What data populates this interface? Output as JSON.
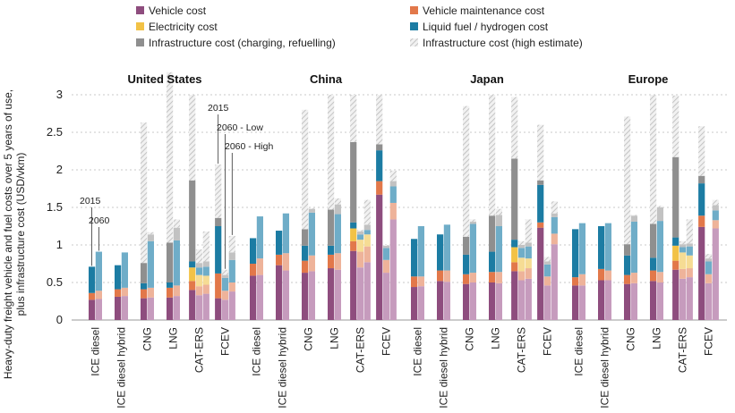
{
  "chart_data": {
    "type": "bar",
    "stacked": true,
    "ylabel": "Heavy-duty freight vehicle and fuel costs over 5 years of use, plus infrastructure cost (USD/vkm)",
    "ylim": [
      0,
      3
    ],
    "yticks": [
      0,
      0.5,
      1,
      1.5,
      2,
      2.5,
      3
    ],
    "grid": "horizontal",
    "legend_position": "top",
    "regions": [
      "United States",
      "China",
      "Japan",
      "Europe"
    ],
    "technologies": [
      "ICE diesel",
      "ICE diesel hybrid",
      "CNG",
      "LNG",
      "CAT-ERS",
      "FCEV"
    ],
    "bar_labels": [
      "2015",
      "2060 - Low",
      "2060 - High"
    ],
    "annotations": [
      {
        "text": "2015",
        "target": "United States / ICE diesel / 2015"
      },
      {
        "text": "2060",
        "target": "United States / ICE diesel / 2060"
      },
      {
        "text": "2015",
        "target": "United States / FCEV / 2015"
      },
      {
        "text": "2060 - Low",
        "target": "United States / FCEV / 2060 - Low"
      },
      {
        "text": "2060 - High",
        "target": "United States / FCEV / 2060 - High"
      }
    ],
    "components": [
      {
        "key": "vehicle",
        "name": "Vehicle cost",
        "color": "#8e4d7e",
        "light": "#c69bbd"
      },
      {
        "key": "maintenance",
        "name": "Vehicle maintenance cost",
        "color": "#e2784a",
        "light": "#eeb39a"
      },
      {
        "key": "electricity",
        "name": "Electricity cost",
        "color": "#f2c246",
        "light": "#f6dc94"
      },
      {
        "key": "fuel",
        "name": "Liquid fuel / hydrogen cost",
        "color": "#1c7ca3",
        "light": "#6fadc8"
      },
      {
        "key": "infra",
        "name": "Infrastructure cost (charging, refuelling)",
        "color": "#8f8f8f",
        "light": "#c2c2c2"
      },
      {
        "key": "infra_high",
        "name": "Infrastructure cost (high estimate)",
        "color": "#dadada",
        "light": "#dadada"
      }
    ],
    "series": [
      {
        "region": "United States",
        "tech": "ICE diesel",
        "bars": [
          [
            0.27,
            0.09,
            0,
            0.35,
            0,
            0
          ],
          [
            0.28,
            0.11,
            0,
            0.52,
            0,
            0
          ]
        ]
      },
      {
        "region": "United States",
        "tech": "ICE diesel hybrid",
        "bars": [
          [
            0.31,
            0.1,
            0,
            0.32,
            0,
            0
          ],
          [
            0.32,
            0.11,
            0,
            0.47,
            0,
            0
          ]
        ]
      },
      {
        "region": "United States",
        "tech": "CNG",
        "bars": [
          [
            0.29,
            0.12,
            0,
            0.08,
            0.27,
            1.87
          ],
          [
            0.3,
            0.13,
            0,
            0.62,
            0.09,
            0.03
          ]
        ]
      },
      {
        "region": "United States",
        "tech": "LNG",
        "bars": [
          [
            0.3,
            0.13,
            0,
            0.07,
            0.53,
            2.27
          ],
          [
            0.32,
            0.14,
            0,
            0.6,
            0.17,
            0.11
          ]
        ]
      },
      {
        "region": "United States",
        "tech": "CAT-ERS",
        "bars": [
          [
            0.4,
            0.12,
            0.18,
            0.08,
            1.08,
            1.14
          ],
          [
            0.33,
            0.12,
            0.15,
            0.1,
            0.06,
            0.18
          ],
          [
            0.35,
            0.12,
            0.12,
            0.12,
            0.07,
            0.4
          ]
        ]
      },
      {
        "region": "United States",
        "tech": "FCEV",
        "bars": [
          [
            0.29,
            0.33,
            0,
            0.63,
            0.11,
            0.71
          ],
          [
            0.27,
            0.12,
            0,
            0.17,
            0.04,
            0.07
          ],
          [
            0.38,
            0.12,
            0,
            0.3,
            0.1,
            0.22
          ]
        ]
      },
      {
        "region": "China",
        "tech": "ICE diesel",
        "bars": [
          [
            0.59,
            0.16,
            0,
            0.34,
            0,
            0
          ],
          [
            0.6,
            0.22,
            0,
            0.56,
            0,
            0
          ]
        ]
      },
      {
        "region": "China",
        "tech": "ICE diesel hybrid",
        "bars": [
          [
            0.73,
            0.14,
            0,
            0.32,
            0,
            0
          ],
          [
            0.66,
            0.23,
            0,
            0.53,
            0,
            0
          ]
        ]
      },
      {
        "region": "China",
        "tech": "CNG",
        "bars": [
          [
            0.63,
            0.16,
            0,
            0.2,
            0.22,
            1.59
          ],
          [
            0.65,
            0.21,
            0,
            0.57,
            0.05,
            0.01
          ]
        ]
      },
      {
        "region": "China",
        "tech": "LNG",
        "bars": [
          [
            0.69,
            0.18,
            0,
            0.12,
            0.48,
            1.53
          ],
          [
            0.67,
            0.22,
            0,
            0.52,
            0.13,
            0.08
          ]
        ]
      },
      {
        "region": "China",
        "tech": "CAT-ERS",
        "bars": [
          [
            0.92,
            0.13,
            0.17,
            0.08,
            1.07,
            0.63
          ],
          [
            0.7,
            0.21,
            0.16,
            0.07,
            0.04,
            0.02
          ],
          [
            0.77,
            0.21,
            0.16,
            0.06,
            0.07,
            0.33
          ]
        ]
      },
      {
        "region": "China",
        "tech": "FCEV",
        "bars": [
          [
            1.67,
            0.18,
            0,
            0.41,
            0.08,
            0.66
          ],
          [
            0.63,
            0.17,
            0,
            0.16,
            0.03,
            0.01
          ],
          [
            1.34,
            0.22,
            0,
            0.22,
            0.07,
            0.14
          ]
        ]
      },
      {
        "region": "Japan",
        "tech": "ICE diesel",
        "bars": [
          [
            0.44,
            0.14,
            0,
            0.5,
            0,
            0
          ],
          [
            0.45,
            0.13,
            0,
            0.67,
            0,
            0
          ]
        ]
      },
      {
        "region": "Japan",
        "tech": "ICE diesel hybrid",
        "bars": [
          [
            0.52,
            0.14,
            0,
            0.48,
            0,
            0
          ],
          [
            0.51,
            0.15,
            0,
            0.61,
            0,
            0
          ]
        ]
      },
      {
        "region": "Japan",
        "tech": "CNG",
        "bars": [
          [
            0.48,
            0.13,
            0,
            0.26,
            0.24,
            1.74
          ],
          [
            0.5,
            0.13,
            0,
            0.65,
            0.03,
            0.03
          ]
        ]
      },
      {
        "region": "Japan",
        "tech": "LNG",
        "bars": [
          [
            0.5,
            0.14,
            0,
            0.27,
            0.48,
            1.61
          ],
          [
            0.49,
            0.15,
            0,
            0.61,
            0.15,
            0.08
          ]
        ]
      },
      {
        "region": "Japan",
        "tech": "CAT-ERS",
        "bars": [
          [
            0.65,
            0.12,
            0.2,
            0.1,
            1.08,
            0.82
          ],
          [
            0.53,
            0.12,
            0.18,
            0.13,
            0.04,
            0.05
          ],
          [
            0.55,
            0.14,
            0.13,
            0.16,
            0.05,
            0.31
          ]
        ]
      },
      {
        "region": "Japan",
        "tech": "FCEV",
        "bars": [
          [
            1.23,
            0.07,
            0,
            0.5,
            0.06,
            0.74
          ],
          [
            0.46,
            0.12,
            0,
            0.16,
            0.04,
            0.06
          ],
          [
            1.01,
            0.14,
            0,
            0.22,
            0.05,
            0.16
          ]
        ]
      },
      {
        "region": "Europe",
        "tech": "ICE diesel",
        "bars": [
          [
            0.46,
            0.11,
            0,
            0.64,
            0,
            0
          ],
          [
            0.46,
            0.15,
            0,
            0.68,
            0,
            0
          ]
        ]
      },
      {
        "region": "Europe",
        "tech": "ICE diesel hybrid",
        "bars": [
          [
            0.53,
            0.15,
            0,
            0.57,
            0,
            0
          ],
          [
            0.53,
            0.13,
            0,
            0.63,
            0,
            0
          ]
        ]
      },
      {
        "region": "Europe",
        "tech": "CNG",
        "bars": [
          [
            0.48,
            0.12,
            0,
            0.26,
            0.15,
            1.7
          ],
          [
            0.49,
            0.14,
            0,
            0.68,
            0.08,
            0.01
          ]
        ]
      },
      {
        "region": "Europe",
        "tech": "LNG",
        "bars": [
          [
            0.52,
            0.14,
            0,
            0.17,
            0.45,
            1.72
          ],
          [
            0.5,
            0.14,
            0,
            0.68,
            0.18,
            0.02
          ]
        ]
      },
      {
        "region": "Europe",
        "tech": "CAT-ERS",
        "bars": [
          [
            0.67,
            0.12,
            0.2,
            0.11,
            1.07,
            0.82
          ],
          [
            0.55,
            0.13,
            0.22,
            0.07,
            0.04,
            0.04
          ],
          [
            0.57,
            0.12,
            0.17,
            0.12,
            0.04,
            0.32
          ]
        ]
      },
      {
        "region": "Europe",
        "tech": "FCEV",
        "bars": [
          [
            1.24,
            0.15,
            0,
            0.43,
            0.1,
            0.66
          ],
          [
            0.49,
            0.12,
            0,
            0.17,
            0.04,
            0.06
          ],
          [
            1.22,
            0.11,
            0,
            0.13,
            0.07,
            0.07
          ]
        ]
      }
    ]
  }
}
